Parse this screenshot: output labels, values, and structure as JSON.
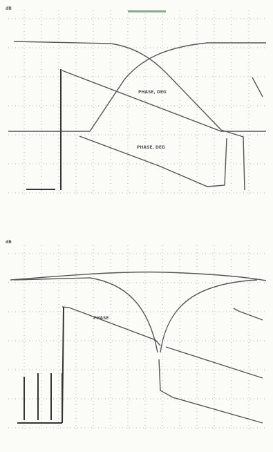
{
  "panels": [
    {
      "unit": "dB",
      "curve_labels": [
        "PHASE, DEG",
        "PHASE, DEG"
      ]
    },
    {
      "unit": "dB",
      "curve_labels": [
        "PHASE"
      ]
    }
  ]
}
